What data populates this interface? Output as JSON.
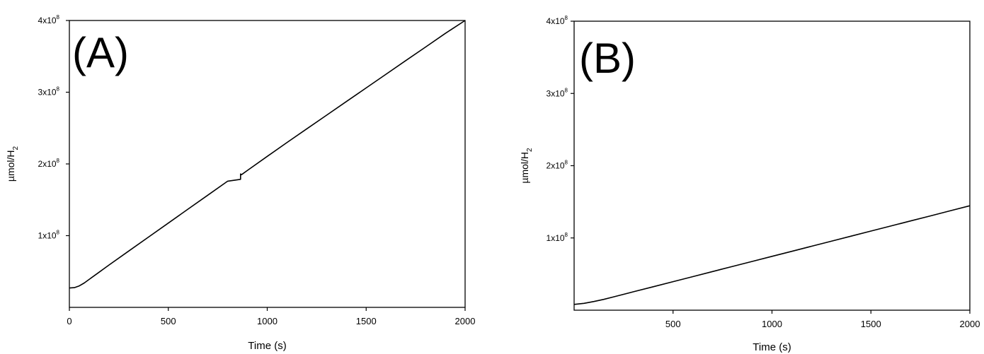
{
  "chart_data": [
    {
      "type": "line",
      "panel_label": "(A)",
      "xlabel": "Time (s)",
      "ylabel_main": "µmol/H",
      "ylabel_sub": "2",
      "xlim": [
        0,
        2000
      ],
      "ylim": [
        0,
        400000000
      ],
      "x_ticks": [
        {
          "value": 0,
          "label": "0"
        },
        {
          "value": 500,
          "label": "500"
        },
        {
          "value": 1000,
          "label": "1000"
        },
        {
          "value": 1500,
          "label": "1500"
        },
        {
          "value": 2000,
          "label": "2000"
        }
      ],
      "y_ticks": [
        {
          "value": 100000000,
          "base": "1x10",
          "exp": "8"
        },
        {
          "value": 200000000,
          "base": "2x10",
          "exp": "8"
        },
        {
          "value": 300000000,
          "base": "3x10",
          "exp": "8"
        },
        {
          "value": 400000000,
          "base": "4x10",
          "exp": "8"
        }
      ],
      "series": [
        {
          "x": [
            0,
            25,
            50,
            75,
            100,
            150,
            200,
            300,
            400,
            500,
            600,
            700,
            800,
            865,
            865,
            870,
            900,
            1000,
            1100,
            1200,
            1300,
            1400,
            1500,
            1600,
            1700,
            1800,
            1900,
            2000
          ],
          "y": [
            27000000,
            27500000,
            30000000,
            34000000,
            39000000,
            49000000,
            59000000,
            78500000,
            98000000,
            117500000,
            137000000,
            156500000,
            176000000,
            178500000,
            186000000,
            185000000,
            191000000,
            210500000,
            230000000,
            249000000,
            268000000,
            287000000,
            306000000,
            325000000,
            344000000,
            363000000,
            382000000,
            401000000
          ]
        }
      ]
    },
    {
      "type": "line",
      "panel_label": "(B)",
      "xlabel": "Time (s)",
      "ylabel_main": "µmol/H",
      "ylabel_sub": "2",
      "xlim": [
        0,
        2000
      ],
      "ylim": [
        0,
        400000000
      ],
      "x_ticks": [
        {
          "value": 500,
          "label": "500"
        },
        {
          "value": 1000,
          "label": "1000"
        },
        {
          "value": 1500,
          "label": "1500"
        },
        {
          "value": 2000,
          "label": "2000"
        }
      ],
      "y_ticks": [
        {
          "value": 100000000,
          "base": "1x10",
          "exp": "8"
        },
        {
          "value": 200000000,
          "base": "2x10",
          "exp": "8"
        },
        {
          "value": 300000000,
          "base": "3x10",
          "exp": "8"
        },
        {
          "value": 400000000,
          "base": "4x10",
          "exp": "8"
        }
      ],
      "series": [
        {
          "x": [
            0,
            50,
            100,
            150,
            200,
            300,
            400,
            500,
            600,
            700,
            800,
            900,
            1000,
            1100,
            1200,
            1300,
            1400,
            1500,
            1600,
            1700,
            1800,
            1900,
            2000
          ],
          "y": [
            8000000,
            9500000,
            12000000,
            15000000,
            18500000,
            25500000,
            32500000,
            39500000,
            46500000,
            53500000,
            60500000,
            67500000,
            74500000,
            81500000,
            88500000,
            95500000,
            102500000,
            109500000,
            116500000,
            123500000,
            130500000,
            137500000,
            144500000
          ]
        }
      ]
    }
  ]
}
